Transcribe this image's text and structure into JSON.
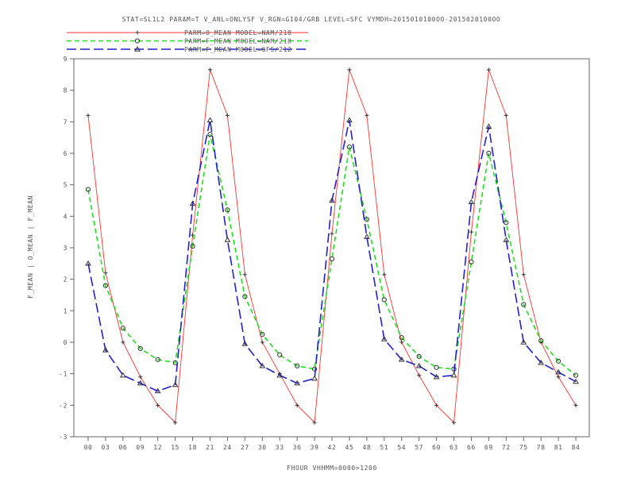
{
  "chart_data": {
    "type": "line",
    "title": "STAT=SL1L2 PARAM=T V_ANL=ONLYSF V_RGN=G104/GRB LEVEL=SFC VYMDH=2015010100OO-2015020100OO",
    "xlabel": "FHOUR VHHMM=0000>1200",
    "ylabel": "F_MEAN | O_MEAN | F_MEAN",
    "ylim": [
      -3,
      9
    ],
    "yticks": [
      "9",
      "8",
      "7",
      "6",
      "5",
      "4",
      "3",
      "2",
      "1",
      "0",
      "-1",
      "-2",
      "-3"
    ],
    "categories": [
      "00",
      "03",
      "06",
      "09",
      "12",
      "15",
      "18",
      "21",
      "24",
      "27",
      "30",
      "33",
      "36",
      "39",
      "42",
      "45",
      "48",
      "51",
      "54",
      "57",
      "60",
      "63",
      "66",
      "69",
      "72",
      "75",
      "78",
      "81",
      "84"
    ],
    "series": [
      {
        "name": "PARM=O_MEAN MODEL=NAM/218",
        "color": "#ff3333",
        "marker": "plus",
        "dash": "solid",
        "values": [
          7.2,
          2.2,
          0.0,
          -1.1,
          -2.0,
          -2.55,
          3.4,
          8.65,
          7.2,
          2.15,
          0.0,
          -1.0,
          -2.0,
          -2.55,
          3.45,
          8.65,
          7.2,
          2.15,
          0.0,
          -1.05,
          -2.0,
          -2.55,
          3.5,
          8.65,
          7.2,
          2.15,
          0.0,
          -1.1,
          -2.0
        ]
      },
      {
        "name": "PARM=F_MEAN MODEL=NAM/218",
        "color": "#22dd22",
        "marker": "circle",
        "dash": "dashed",
        "values": [
          4.85,
          1.8,
          0.45,
          -0.2,
          -0.55,
          -0.65,
          3.05,
          6.6,
          4.2,
          1.45,
          0.25,
          -0.4,
          -0.75,
          -0.85,
          2.65,
          6.2,
          3.9,
          1.35,
          0.15,
          -0.45,
          -0.8,
          -0.85,
          2.55,
          6.0,
          3.8,
          1.2,
          0.05,
          -0.6,
          -1.05
        ]
      },
      {
        "name": "PARM=F_MEAN MODEL=GFS/212",
        "color": "#2222cc",
        "marker": "triangle",
        "dash": "longdash",
        "values": [
          2.5,
          -0.25,
          -1.05,
          -1.3,
          -1.55,
          -1.35,
          4.4,
          7.05,
          3.25,
          -0.05,
          -0.75,
          -1.05,
          -1.3,
          -1.15,
          4.5,
          7.05,
          3.35,
          0.1,
          -0.55,
          -0.75,
          -1.1,
          -1.05,
          4.45,
          6.85,
          3.25,
          0.0,
          -0.65,
          -0.95,
          -1.25
        ]
      }
    ]
  }
}
